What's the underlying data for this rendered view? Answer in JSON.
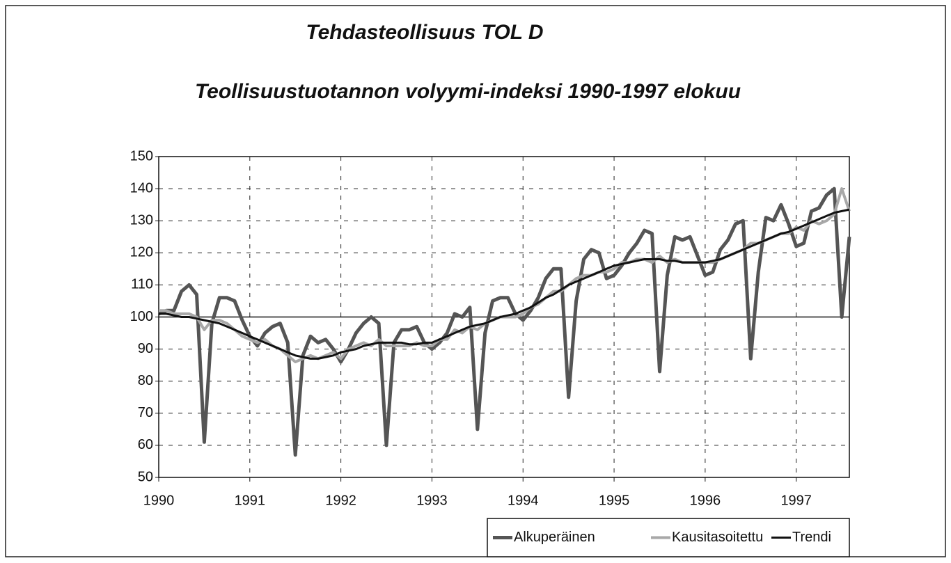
{
  "chart_data": {
    "type": "line",
    "title": "Tehdasteollisuus TOL D",
    "subtitle": "Teollisuustuotannon volyymi-indeksi 1990-1997 elokuu",
    "categories": [
      "1990",
      null,
      null,
      null,
      null,
      null,
      null,
      null,
      null,
      null,
      null,
      null,
      "1991",
      null,
      null,
      null,
      null,
      null,
      null,
      null,
      null,
      null,
      null,
      null,
      "1992",
      null,
      null,
      null,
      null,
      null,
      null,
      null,
      null,
      null,
      null,
      null,
      "1993",
      null,
      null,
      null,
      null,
      null,
      null,
      null,
      null,
      null,
      null,
      null,
      "1994",
      null,
      null,
      null,
      null,
      null,
      null,
      null,
      null,
      null,
      null,
      null,
      "1995",
      null,
      null,
      null,
      null,
      null,
      null,
      null,
      null,
      null,
      null,
      null,
      "1996",
      null,
      null,
      null,
      null,
      null,
      null,
      null,
      null,
      null,
      null,
      null,
      "1997",
      null,
      null,
      null,
      null,
      null,
      null,
      null
    ],
    "series": [
      {
        "name": "Alkuperäinen",
        "color": "#555555",
        "values": [
          101,
          102,
          102,
          108,
          110,
          107,
          61,
          98,
          106,
          106,
          105,
          99,
          94,
          91,
          95,
          97,
          98,
          92,
          57,
          88,
          94,
          92,
          93,
          90,
          86,
          90,
          95,
          98,
          100,
          98,
          60,
          92,
          96,
          96,
          97,
          92,
          90,
          92,
          95,
          101,
          100,
          103,
          65,
          95,
          105,
          106,
          106,
          101,
          99,
          102,
          106,
          112,
          115,
          115,
          75,
          105,
          118,
          121,
          120,
          112,
          113,
          116,
          120,
          123,
          127,
          126,
          83,
          113,
          125,
          124,
          125,
          119,
          113,
          114,
          121,
          124,
          129,
          130,
          87,
          114,
          131,
          130,
          135,
          129,
          122,
          123,
          133,
          134,
          138,
          140,
          100,
          125
        ]
      },
      {
        "name": "Kausitasoitettu",
        "color": "#a8a8a8",
        "values": [
          102,
          102,
          101,
          101,
          101,
          100,
          96,
          99,
          99,
          98,
          96,
          94,
          93,
          92,
          93,
          91,
          90,
          88,
          86,
          87,
          88,
          87,
          88,
          89,
          87,
          90,
          91,
          92,
          91,
          93,
          91,
          91,
          91,
          91,
          92,
          91,
          91,
          93,
          93,
          96,
          95,
          97,
          96,
          98,
          99,
          100,
          100,
          100,
          101,
          103,
          104,
          106,
          108,
          108,
          110,
          112,
          113,
          113,
          114,
          114,
          115,
          117,
          117,
          118,
          118,
          117,
          119,
          117,
          118,
          117,
          117,
          117,
          117,
          117,
          118,
          119,
          120,
          121,
          123,
          123,
          124,
          125,
          126,
          126,
          128,
          127,
          130,
          129,
          130,
          132,
          140,
          133
        ]
      },
      {
        "name": "Trendi",
        "color": "#111111",
        "values": [
          101,
          101,
          100.5,
          100,
          100,
          99.5,
          99,
          98.5,
          98,
          97,
          96,
          95,
          94,
          93,
          92,
          91,
          90,
          89,
          88,
          87.5,
          87,
          87,
          87.5,
          88,
          89,
          89.5,
          90,
          91,
          91.5,
          92,
          92,
          92,
          92,
          91.5,
          91.5,
          92,
          92,
          93,
          94,
          95,
          96,
          97,
          97.5,
          98,
          99,
          100,
          100.5,
          101,
          102,
          103,
          104.5,
          106,
          107,
          108.5,
          110,
          111,
          112,
          113,
          114,
          115,
          116,
          116.5,
          117,
          117.5,
          118,
          118,
          118,
          117.5,
          117.5,
          117,
          117,
          117,
          117,
          117.5,
          118,
          119,
          120,
          121,
          122,
          123,
          124,
          125,
          126,
          126.5,
          127.5,
          128.5,
          129.5,
          130.5,
          131.5,
          132.5,
          133,
          133.5
        ]
      }
    ],
    "ylim": [
      50,
      150
    ],
    "yticks": [
      50,
      60,
      70,
      80,
      90,
      100,
      110,
      120,
      130,
      140,
      150
    ],
    "reference_line": 100,
    "grid": true,
    "legend": "bottom-right"
  }
}
